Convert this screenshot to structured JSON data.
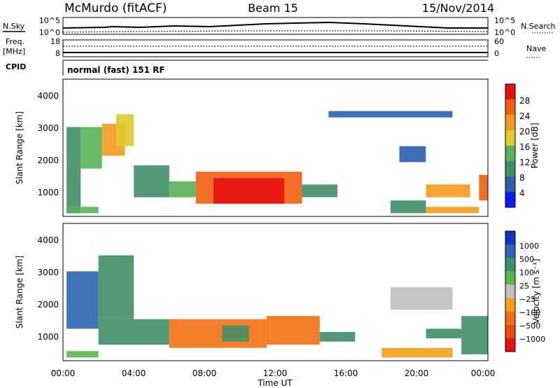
{
  "header": {
    "station": "McMurdo (fitACF)",
    "beam": "Beam 15",
    "date": "15/Nov/2014"
  },
  "top_panels": {
    "nsky_label": "N.Sky",
    "nsearch_label": "N.Search",
    "nsky_ticks": [
      "10^5",
      "10^0"
    ],
    "nsky_right_ticks": [
      "10^5",
      "10^0"
    ],
    "freq_label_1": "Freq.",
    "freq_label_2": "[MHz]",
    "freq_ticks": [
      "18",
      "8"
    ],
    "nave_ticks": [
      "60",
      "0"
    ],
    "nave_label": "Nave",
    "cpid_label": "CPID",
    "cpid_value": "normal (fast) 151 RF"
  },
  "colors": {
    "power": [
      "#0a1cf0",
      "#2c5fae",
      "#3f8f66",
      "#57b257",
      "#e0c92a",
      "#f29a1e",
      "#f06010",
      "#e81010"
    ],
    "velocity": [
      "#1432c8",
      "#2c66b0",
      "#3f8f66",
      "#59b84a",
      "#bfbfbf",
      "#f2a018",
      "#f07010",
      "#ee4a10",
      "#e81010"
    ]
  },
  "chart_data": [
    {
      "type": "heatmap",
      "panel": "power",
      "ylabel": "Slant Range [km]",
      "yticks": [
        "4000",
        "3000",
        "2000",
        "1000"
      ],
      "colorbar_label": "Power [dB]",
      "colorbar_ticks": [
        "28",
        "24",
        "20",
        "16",
        "12",
        "8",
        "4"
      ],
      "regions": [
        {
          "t0": 0.2,
          "t1": 1.0,
          "r0": 300,
          "r1": 3000,
          "level": 2
        },
        {
          "t0": 1.0,
          "t1": 2.2,
          "r0": 1700,
          "r1": 3000,
          "level": 3
        },
        {
          "t0": 2.2,
          "t1": 3.5,
          "r0": 2100,
          "r1": 3100,
          "level": 5
        },
        {
          "t0": 3.0,
          "t1": 4.0,
          "r0": 2400,
          "r1": 3400,
          "level": 4
        },
        {
          "t0": 4.0,
          "t1": 6.0,
          "r0": 800,
          "r1": 1800,
          "level": 2
        },
        {
          "t0": 6.0,
          "t1": 7.5,
          "r0": 800,
          "r1": 1300,
          "level": 3
        },
        {
          "t0": 7.5,
          "t1": 13.5,
          "r0": 600,
          "r1": 1600,
          "level": 6
        },
        {
          "t0": 8.5,
          "t1": 12.5,
          "r0": 600,
          "r1": 1400,
          "level": 7
        },
        {
          "t0": 13.5,
          "t1": 15.5,
          "r0": 800,
          "r1": 1200,
          "level": 2
        },
        {
          "t0": 15.0,
          "t1": 22.0,
          "r0": 3300,
          "r1": 3500,
          "level": 1
        },
        {
          "t0": 18.5,
          "t1": 20.5,
          "r0": 300,
          "r1": 700,
          "level": 2
        },
        {
          "t0": 19.0,
          "t1": 20.5,
          "r0": 1900,
          "r1": 2400,
          "level": 1
        },
        {
          "t0": 20.5,
          "t1": 23.0,
          "r0": 800,
          "r1": 1200,
          "level": 5
        },
        {
          "t0": 20.5,
          "t1": 23.5,
          "r0": 300,
          "r1": 500,
          "level": 5
        },
        {
          "t0": 23.5,
          "t1": 24.0,
          "r0": 700,
          "r1": 1500,
          "level": 6
        },
        {
          "t0": 0.2,
          "t1": 2.0,
          "r0": 300,
          "r1": 500,
          "level": 3
        }
      ]
    },
    {
      "type": "heatmap",
      "panel": "velocity",
      "ylabel": "Slant Range [km]",
      "yticks": [
        "4000",
        "3000",
        "2000",
        "1000"
      ],
      "xticks": [
        "00:00",
        "04:00",
        "08:00",
        "12:00",
        "16:00",
        "20:00",
        "00:00"
      ],
      "xlabel": "Time UT",
      "colorbar_label": "Velocity [m s⁻¹]",
      "colorbar_ticks": [
        "1000",
        "500",
        "100",
        "25",
        "−25",
        "−100",
        "−500",
        "−1000"
      ],
      "regions": [
        {
          "t0": 0.2,
          "t1": 2.0,
          "r0": 1200,
          "r1": 3000,
          "level": 1
        },
        {
          "t0": 2.0,
          "t1": 4.0,
          "r0": 1500,
          "r1": 3500,
          "level": 2
        },
        {
          "t0": 0.2,
          "t1": 2.0,
          "r0": 300,
          "r1": 500,
          "level": 3
        },
        {
          "t0": 2.0,
          "t1": 6.0,
          "r0": 700,
          "r1": 1500,
          "level": 2
        },
        {
          "t0": 6.0,
          "t1": 11.5,
          "r0": 600,
          "r1": 1500,
          "level": 6
        },
        {
          "t0": 9.0,
          "t1": 10.5,
          "r0": 800,
          "r1": 1300,
          "level": 2
        },
        {
          "t0": 11.5,
          "t1": 14.5,
          "r0": 700,
          "r1": 1600,
          "level": 6
        },
        {
          "t0": 14.5,
          "t1": 16.5,
          "r0": 800,
          "r1": 1100,
          "level": 2
        },
        {
          "t0": 18.0,
          "t1": 22.0,
          "r0": 300,
          "r1": 600,
          "level": 5
        },
        {
          "t0": 20.5,
          "t1": 22.5,
          "r0": 900,
          "r1": 1200,
          "level": 2
        },
        {
          "t0": 22.5,
          "t1": 24.0,
          "r0": 400,
          "r1": 1600,
          "level": 2
        },
        {
          "t0": 18.5,
          "t1": 22.0,
          "r0": 1800,
          "r1": 2500,
          "level": 4
        }
      ]
    }
  ]
}
